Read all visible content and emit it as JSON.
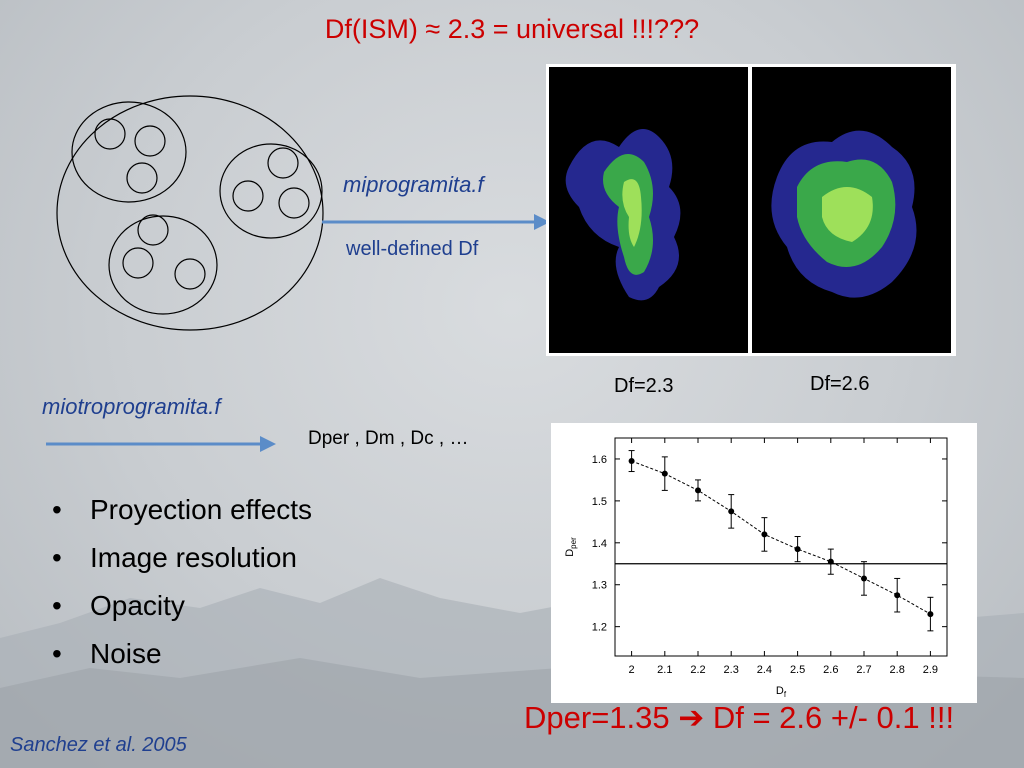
{
  "slide": {
    "title": "Df(ISM) ≈ 2.3 = universal !!!???",
    "mipro_label": "miprogramita.f",
    "welldef_label": "well-defined Df",
    "miotro_label": "miotroprogramita.f",
    "dper_list": "Dper , Dm , Dc , …",
    "image_labels": [
      "Df=2.3",
      "Df=2.6"
    ],
    "bullets": [
      "Proyection effects",
      "Image resolution",
      "Opacity",
      "Noise"
    ],
    "result_text": "Dper=1.35 ➔ Df = 2.6 +/- 0.1 !!!",
    "citation": "Sanchez et al. 2005",
    "colors": {
      "title": "#cc0000",
      "accent_blue": "#1f3f8f",
      "arrow": "#5b8cc8"
    }
  },
  "chart_data": {
    "type": "line",
    "x": [
      2.0,
      2.1,
      2.2,
      2.3,
      2.4,
      2.5,
      2.6,
      2.7,
      2.8,
      2.9
    ],
    "series": [
      {
        "values": [
          1.595,
          1.565,
          1.525,
          1.475,
          1.42,
          1.385,
          1.355,
          1.315,
          1.275,
          1.23
        ],
        "errors": [
          0.025,
          0.04,
          0.025,
          0.04,
          0.04,
          0.03,
          0.03,
          0.04,
          0.04,
          0.04
        ]
      }
    ],
    "hline": 1.35,
    "xlim": [
      1.95,
      2.95
    ],
    "ylim": [
      1.13,
      1.65
    ],
    "xticks": [
      "2",
      "2.1",
      "2.2",
      "2.3",
      "2.4",
      "2.5",
      "2.6",
      "2.7",
      "2.8",
      "2.9"
    ],
    "yticks": [
      "1.2",
      "1.3",
      "1.4",
      "1.5",
      "1.6"
    ],
    "xlabel_main": "D",
    "xlabel_sub": "f",
    "ylabel_main": "D",
    "ylabel_sub": "per",
    "grid": false
  }
}
